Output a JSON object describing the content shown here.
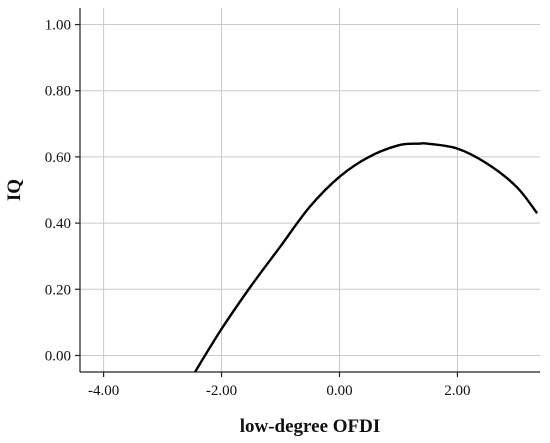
{
  "chart_data": {
    "type": "line",
    "xlabel": "low-degree OFDI",
    "ylabel": "IQ",
    "xlim": [
      -4.4,
      3.4
    ],
    "ylim": [
      -0.05,
      1.05
    ],
    "x_ticks": [
      "-4.00",
      "-2.00",
      "0.00",
      "2.00"
    ],
    "x_tick_values": [
      -4,
      -2,
      0,
      2
    ],
    "y_ticks": [
      "0.00",
      "0.20",
      "0.40",
      "0.60",
      "0.80",
      "1.00"
    ],
    "y_tick_values": [
      0,
      0.2,
      0.4,
      0.6,
      0.8,
      1.0
    ],
    "grid": true,
    "series": [
      {
        "line_color": "#000000",
        "fit": "quadratic",
        "x": [
          -2.45,
          -2.0,
          -1.5,
          -1.0,
          -0.5,
          0.0,
          0.5,
          1.0,
          1.35,
          1.5,
          2.0,
          2.5,
          3.0,
          3.35
        ],
        "y": [
          -0.05,
          0.08,
          0.21,
          0.33,
          0.45,
          0.54,
          0.6,
          0.635,
          0.64,
          0.64,
          0.625,
          0.58,
          0.51,
          0.43
        ]
      }
    ]
  }
}
